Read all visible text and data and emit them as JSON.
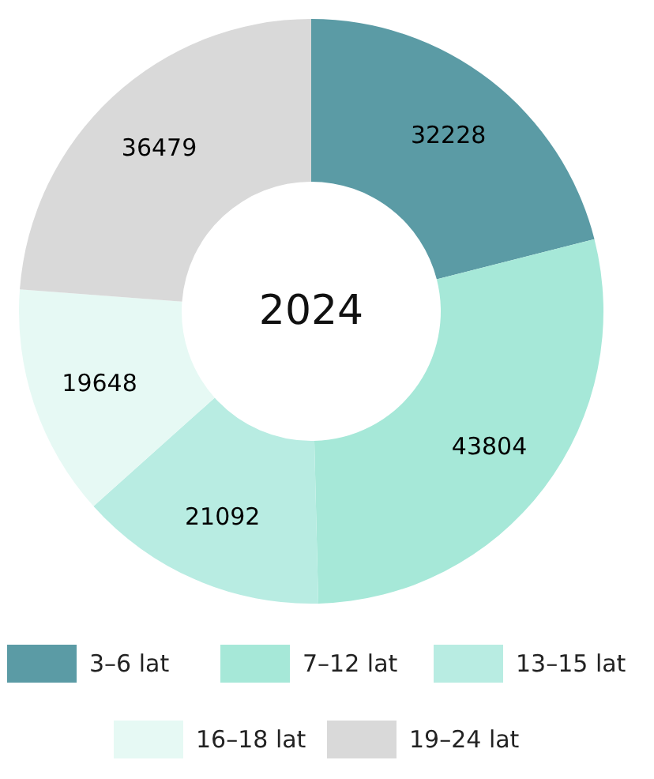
{
  "chart_data": {
    "type": "donut",
    "title": "2024",
    "categories": [
      "3–6 lat",
      "7–12 lat",
      "13–15 lat",
      "16–18 lat",
      "19–24 lat"
    ],
    "values": [
      32228,
      43804,
      21092,
      19648,
      36479
    ],
    "colors": [
      "#5b9ba5",
      "#a6e8d8",
      "#b8ece2",
      "#e6f9f4",
      "#d9d9d9"
    ],
    "data_labels": true,
    "legend": "bottom"
  }
}
